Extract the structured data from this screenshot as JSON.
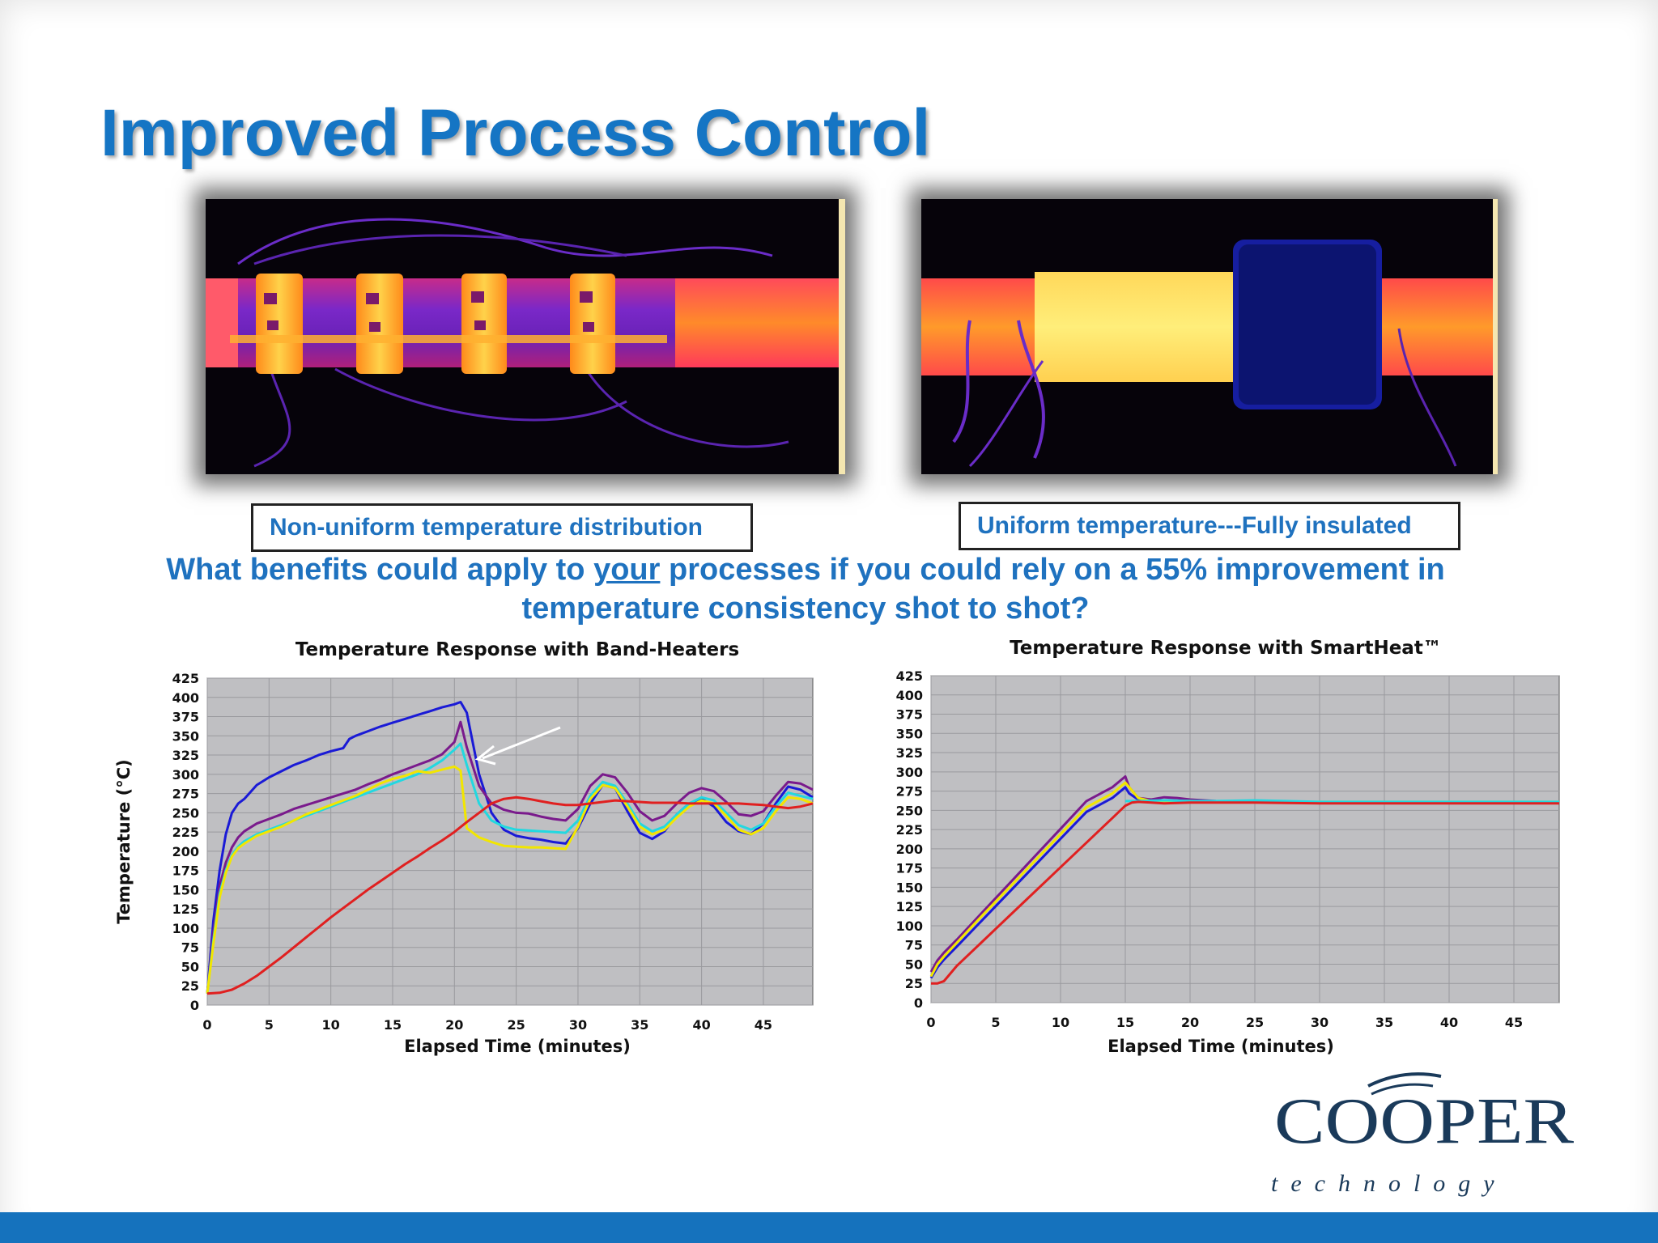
{
  "slide": {
    "title": "Improved Process Control",
    "caption_left": "Non-uniform temperature distribution",
    "caption_right": "Uniform temperature---Fully insulated",
    "question_part1": "What benefits could apply to ",
    "question_emph": "your",
    "question_part2": " processes if you could rely on a 55% improvement in temperature consistency shot to shot?",
    "logo_word": "COOPER",
    "logo_sub": "technology",
    "colors": {
      "title": "#1575c4",
      "text": "#1f72bf",
      "footer": "#1572bd",
      "plot_bg": "#bfbfc2"
    }
  },
  "chart_data": [
    {
      "type": "line",
      "title": "Temperature Response with Band-Heaters",
      "xlabel": "Elapsed Time (minutes)",
      "ylabel": "Temperature (°C)",
      "xlim": [
        0,
        49
      ],
      "ylim": [
        0,
        425
      ],
      "xticks": [
        0,
        5,
        10,
        15,
        20,
        25,
        30,
        35,
        40,
        45
      ],
      "yticks": [
        0,
        25,
        50,
        75,
        100,
        125,
        150,
        175,
        200,
        225,
        250,
        275,
        300,
        325,
        350,
        375,
        400,
        425
      ],
      "grid": true,
      "annotation": "white arrow pointing to peak at ~21 min",
      "series": [
        {
          "color": "#1a1ad6",
          "x": [
            0,
            0.5,
            1,
            1.5,
            2,
            2.5,
            3,
            4,
            5,
            6,
            7,
            8,
            9,
            10,
            11,
            11.5,
            12,
            13,
            14,
            15,
            16,
            17,
            18,
            19,
            20,
            20.5,
            21,
            22,
            23,
            24,
            25,
            26,
            27,
            28,
            29,
            30,
            31,
            32,
            33,
            34,
            35,
            36,
            37,
            38,
            39,
            40,
            41,
            42,
            43,
            44,
            45,
            46,
            47,
            48,
            49
          ],
          "y": [
            15,
            110,
            175,
            222,
            250,
            262,
            268,
            286,
            296,
            304,
            312,
            318,
            325,
            330,
            334,
            346,
            350,
            356,
            362,
            367,
            372,
            377,
            382,
            387,
            391,
            394,
            380,
            300,
            250,
            228,
            220,
            217,
            215,
            212,
            210,
            230,
            262,
            286,
            282,
            252,
            224,
            216,
            226,
            248,
            262,
            268,
            258,
            238,
            226,
            222,
            236,
            262,
            284,
            280,
            270
          ]
        },
        {
          "color": "#7a1a8c",
          "x": [
            0,
            0.5,
            1,
            1.5,
            2,
            2.5,
            3,
            4,
            5,
            6,
            7,
            8,
            9,
            10,
            11,
            12,
            13,
            14,
            15,
            16,
            17,
            18,
            19,
            20,
            20.5,
            21,
            22,
            23,
            24,
            25,
            26,
            27,
            28,
            29,
            30,
            31,
            32,
            33,
            34,
            35,
            36,
            37,
            38,
            39,
            40,
            41,
            42,
            43,
            44,
            45,
            46,
            47,
            48,
            49
          ],
          "y": [
            15,
            95,
            155,
            185,
            205,
            218,
            226,
            236,
            242,
            248,
            255,
            260,
            265,
            270,
            275,
            280,
            287,
            293,
            300,
            306,
            312,
            318,
            326,
            342,
            368,
            335,
            285,
            262,
            254,
            250,
            249,
            245,
            242,
            240,
            255,
            285,
            300,
            296,
            276,
            252,
            240,
            246,
            262,
            276,
            282,
            278,
            264,
            248,
            246,
            252,
            272,
            290,
            288,
            280
          ]
        },
        {
          "color": "#22d8e0",
          "x": [
            0,
            0.5,
            1,
            1.5,
            2,
            2.5,
            3,
            4,
            5,
            6,
            7,
            8,
            9,
            10,
            11,
            12,
            13,
            14,
            15,
            16,
            17,
            18,
            19,
            20,
            20.5,
            21,
            22,
            23,
            24,
            25,
            26,
            27,
            28,
            29,
            30,
            31,
            32,
            33,
            34,
            35,
            36,
            37,
            38,
            39,
            40,
            41,
            42,
            43,
            44,
            45,
            46,
            47,
            48,
            49
          ],
          "y": [
            15,
            85,
            145,
            175,
            195,
            206,
            213,
            222,
            228,
            234,
            240,
            246,
            252,
            258,
            264,
            270,
            276,
            282,
            288,
            294,
            300,
            308,
            318,
            332,
            340,
            312,
            262,
            240,
            232,
            228,
            227,
            226,
            225,
            224,
            240,
            272,
            290,
            285,
            262,
            236,
            226,
            232,
            248,
            262,
            270,
            266,
            250,
            234,
            228,
            236,
            258,
            276,
            272,
            268
          ]
        },
        {
          "color": "#f2e600",
          "x": [
            0,
            0.5,
            1,
            1.5,
            2,
            2.5,
            3,
            4,
            5,
            6,
            7,
            8,
            9,
            10,
            11,
            12,
            13,
            14,
            15,
            16,
            17,
            18,
            19,
            20,
            20.5,
            21,
            22,
            23,
            24,
            25,
            26,
            27,
            28,
            29,
            30,
            31,
            32,
            33,
            34,
            35,
            36,
            37,
            38,
            39,
            40,
            41,
            42,
            43,
            44,
            45,
            46,
            47,
            48,
            49
          ],
          "y": [
            15,
            80,
            140,
            172,
            193,
            204,
            210,
            220,
            226,
            232,
            240,
            248,
            254,
            260,
            266,
            272,
            280,
            288,
            294,
            298,
            304,
            302,
            306,
            310,
            305,
            230,
            218,
            212,
            207,
            206,
            205,
            205,
            204,
            203,
            232,
            268,
            286,
            282,
            258,
            232,
            222,
            228,
            244,
            258,
            266,
            262,
            246,
            228,
            222,
            230,
            252,
            270,
            268,
            262
          ]
        },
        {
          "color": "#e02020",
          "x": [
            0,
            1,
            2,
            3,
            4,
            5,
            6,
            7,
            8,
            9,
            10,
            11,
            12,
            13,
            14,
            15,
            16,
            17,
            18,
            19,
            20,
            21,
            22,
            23,
            24,
            25,
            26,
            27,
            28,
            29,
            30,
            31,
            32,
            33,
            34,
            35,
            36,
            37,
            38,
            39,
            40,
            41,
            42,
            43,
            44,
            45,
            46,
            47,
            48,
            49
          ],
          "y": [
            15,
            16,
            20,
            28,
            38,
            50,
            62,
            75,
            88,
            101,
            114,
            126,
            138,
            150,
            161,
            172,
            183,
            193,
            204,
            214,
            225,
            238,
            250,
            262,
            268,
            270,
            268,
            265,
            262,
            260,
            260,
            262,
            264,
            266,
            265,
            264,
            263,
            263,
            263,
            262,
            262,
            262,
            262,
            262,
            261,
            260,
            258,
            256,
            258,
            262
          ]
        }
      ]
    },
    {
      "type": "line",
      "title": "Temperature Response with SmartHeat™",
      "xlabel": "Elapsed Time (minutes)",
      "xlim": [
        0,
        48.5
      ],
      "ylim": [
        0,
        425
      ],
      "xticks": [
        0,
        5,
        10,
        15,
        20,
        25,
        30,
        35,
        40,
        45
      ],
      "yticks": [
        0,
        25,
        50,
        75,
        100,
        125,
        150,
        175,
        200,
        225,
        250,
        275,
        300,
        325,
        350,
        375,
        400,
        425
      ],
      "grid": true,
      "series": [
        {
          "color": "#7a1a8c",
          "x": [
            0,
            0.5,
            1,
            2,
            4,
            6,
            8,
            10,
            12,
            14,
            15,
            15.3,
            16,
            17,
            18,
            19,
            20,
            22,
            25,
            30,
            35,
            40,
            45,
            48.5
          ],
          "y": [
            40,
            55,
            65,
            82,
            118,
            154,
            190,
            226,
            262,
            280,
            294,
            280,
            266,
            264,
            267,
            266,
            264,
            262,
            261,
            260,
            260,
            260,
            260,
            260
          ]
        },
        {
          "color": "#1a1ad6",
          "x": [
            0,
            0.5,
            1,
            2,
            4,
            6,
            8,
            10,
            12,
            14,
            15,
            15.3,
            16,
            17,
            18,
            20,
            22,
            25,
            30,
            35,
            40,
            45,
            48.5
          ],
          "y": [
            32,
            46,
            56,
            73,
            108,
            143,
            178,
            213,
            248,
            266,
            280,
            272,
            264,
            262,
            263,
            262,
            261,
            261,
            260,
            260,
            260,
            260,
            260
          ]
        },
        {
          "color": "#f2e600",
          "x": [
            0,
            0.5,
            1,
            2,
            4,
            6,
            8,
            10,
            12,
            14,
            15,
            16,
            17,
            18,
            20,
            25,
            30,
            35,
            40,
            45,
            48.5
          ],
          "y": [
            34,
            50,
            60,
            78,
            114,
            149,
            184,
            219,
            254,
            272,
            286,
            266,
            262,
            262,
            262,
            261,
            261,
            261,
            261,
            261,
            261
          ]
        },
        {
          "color": "#22d8e0",
          "x": [
            15,
            16,
            18,
            20,
            22,
            25,
            30,
            35,
            40,
            45,
            48.5
          ],
          "y": [
            262,
            262,
            263,
            262,
            262,
            263,
            261,
            261,
            261,
            261,
            261
          ]
        },
        {
          "color": "#e02020",
          "x": [
            0,
            0.5,
            1,
            1.2,
            2,
            4,
            6,
            8,
            10,
            12,
            14,
            15,
            15.5,
            16,
            17,
            18,
            20,
            25,
            30,
            35,
            40,
            45,
            48.5
          ],
          "y": [
            25,
            25,
            28,
            32,
            48,
            80,
            112,
            144,
            176,
            208,
            240,
            256,
            260,
            261,
            260,
            259,
            260,
            260,
            259,
            259,
            259,
            259,
            259
          ]
        }
      ]
    }
  ]
}
